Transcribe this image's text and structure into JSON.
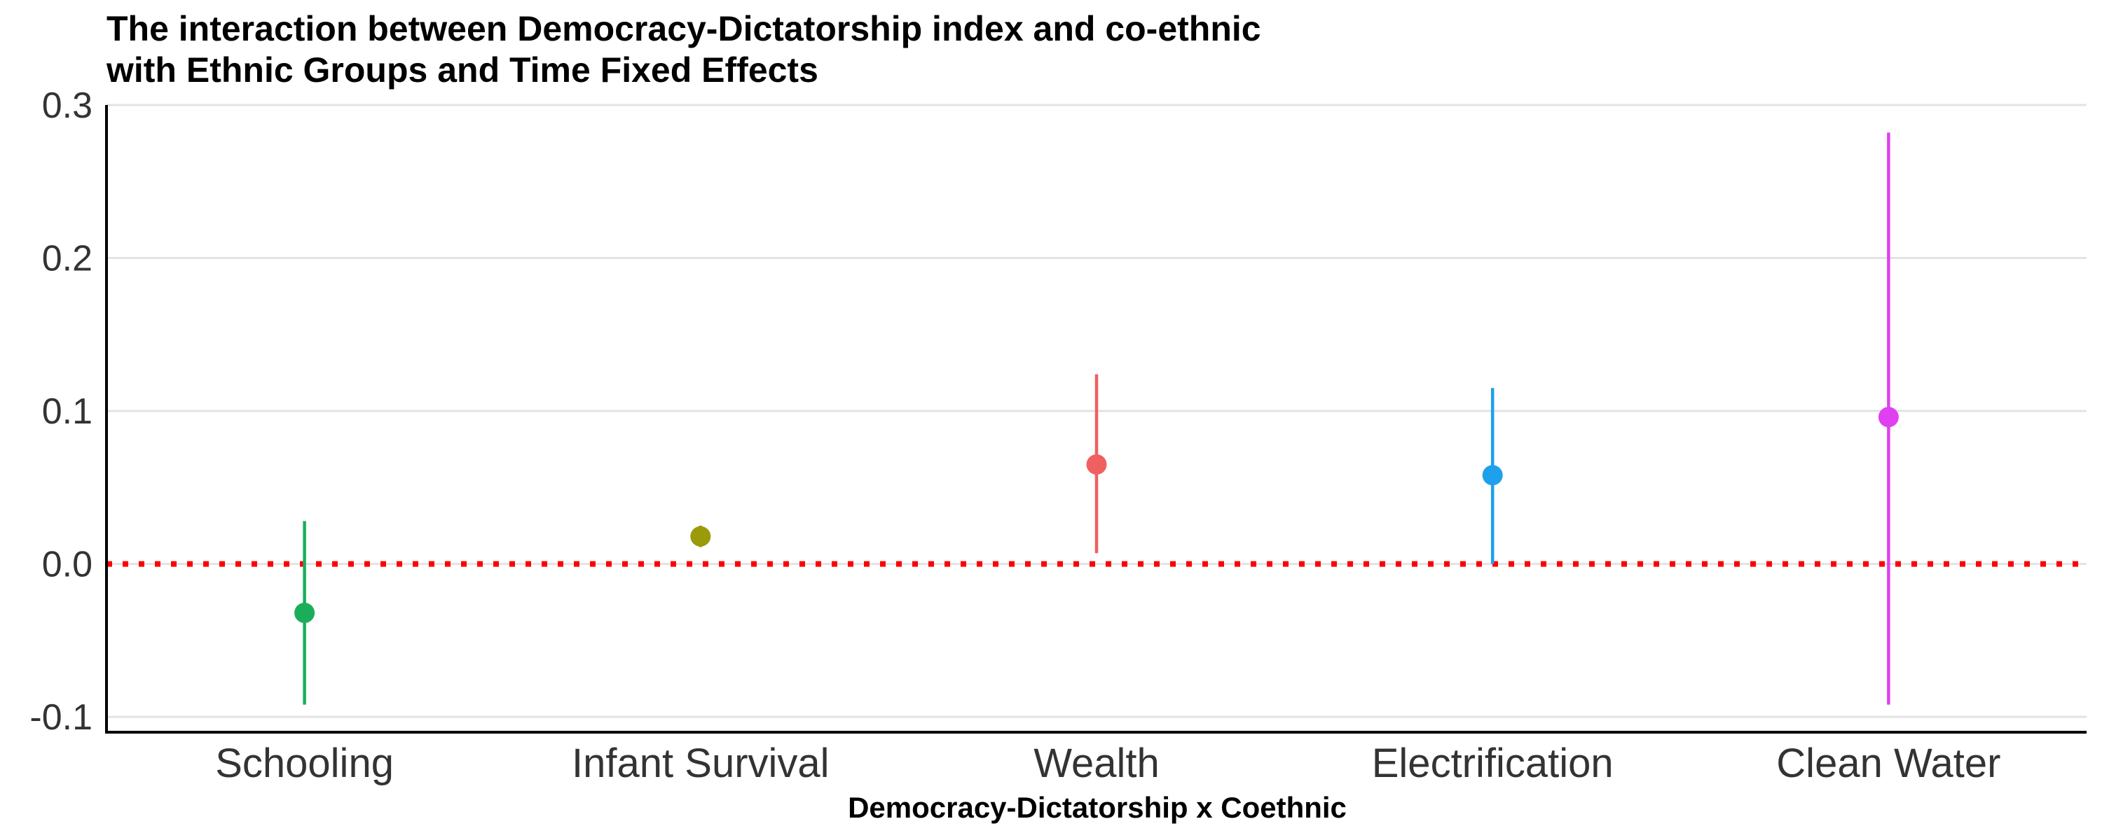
{
  "chart_data": {
    "type": "scatter",
    "title_lines": [
      "The interaction between Democracy-Dictatorship index and co-ethnic",
      "with Ethnic Groups and Time Fixed Effects"
    ],
    "xlabel": "Democracy-Dictatorship x Coethnic",
    "ylabel": "",
    "categories": [
      "Schooling",
      "Infant Survival",
      "Wealth",
      "Electrification",
      "Clean Water"
    ],
    "y_ticks": [
      -0.1,
      0.0,
      0.1,
      0.2,
      0.3
    ],
    "y_tick_labels": [
      "-0.1",
      "0.0",
      "0.1",
      "0.2",
      "0.3"
    ],
    "ylim": [
      -0.11,
      0.3
    ],
    "grid": true,
    "reference_line": {
      "y": 0,
      "style": "dotted",
      "color": "#FF0000"
    },
    "points": [
      {
        "category": "Schooling",
        "estimate": -0.032,
        "ci_low": -0.092,
        "ci_high": 0.028,
        "color": "#1AAE5C"
      },
      {
        "category": "Infant Survival",
        "estimate": 0.018,
        "ci_low": 0.011,
        "ci_high": 0.025,
        "color": "#9A9A0A"
      },
      {
        "category": "Wealth",
        "estimate": 0.065,
        "ci_low": 0.007,
        "ci_high": 0.124,
        "color": "#F06060"
      },
      {
        "category": "Electrification",
        "estimate": 0.058,
        "ci_low": 0.0,
        "ci_high": 0.115,
        "color": "#1FA0EA"
      },
      {
        "category": "Clean Water",
        "estimate": 0.096,
        "ci_low": -0.092,
        "ci_high": 0.282,
        "color": "#E040F0"
      }
    ]
  }
}
